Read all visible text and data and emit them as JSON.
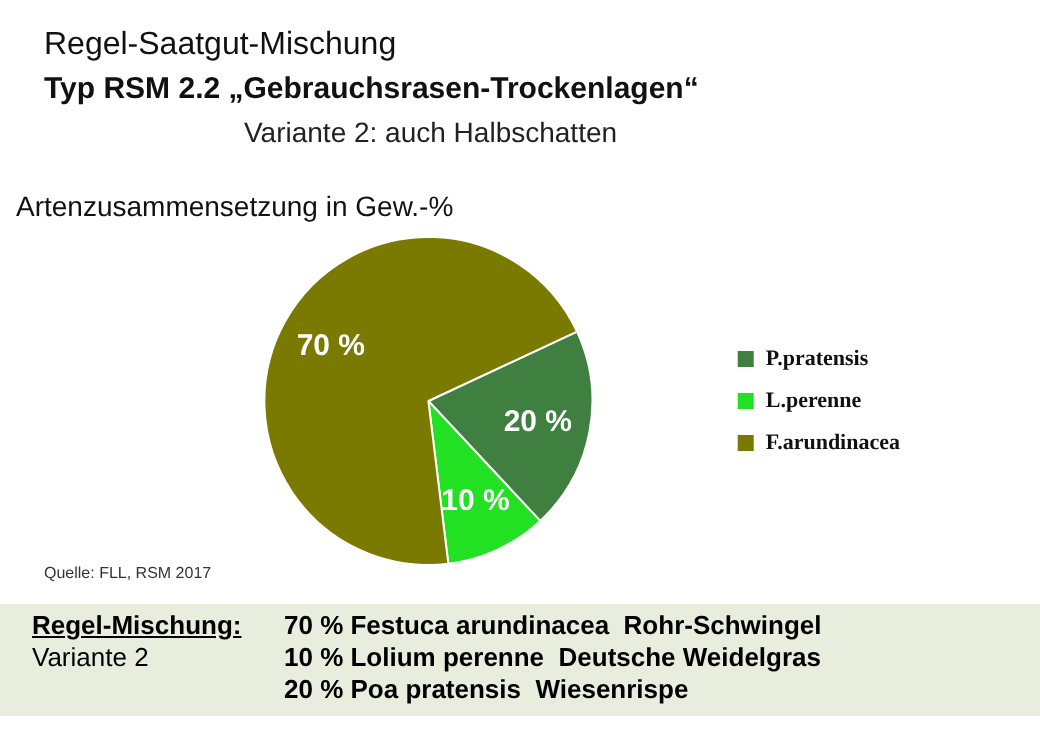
{
  "chart_data": {
    "type": "pie",
    "title": "Regel-Saatgut-Mischung",
    "subtitle": "Typ RSM 2.2 „Gebrauchsrasen-Trockenlagen“",
    "categories": [
      "P.pratensis",
      "L.perenne",
      "F.arundinacea"
    ],
    "values": [
      20,
      10,
      70
    ],
    "colors": [
      "#3f7f3f",
      "#22e022",
      "#7a7a00"
    ],
    "value_labels": [
      "20 %",
      "10 %",
      "70 %"
    ],
    "legend": "right",
    "annotations": [
      "Variante 2:  auch Halbschatten",
      "Artenzusammensetzung in Gew.-%",
      "Quelle: FLL, RSM 2017",
      "Regel-Mischung:",
      "Variante 2",
      "70 % Festuca arundinacea  Rohr-Schwingel",
      "10 % Lolium perenne  Deutsche Weidelgras",
      "20 % Poa pratensis  Wiesenrispe"
    ]
  }
}
